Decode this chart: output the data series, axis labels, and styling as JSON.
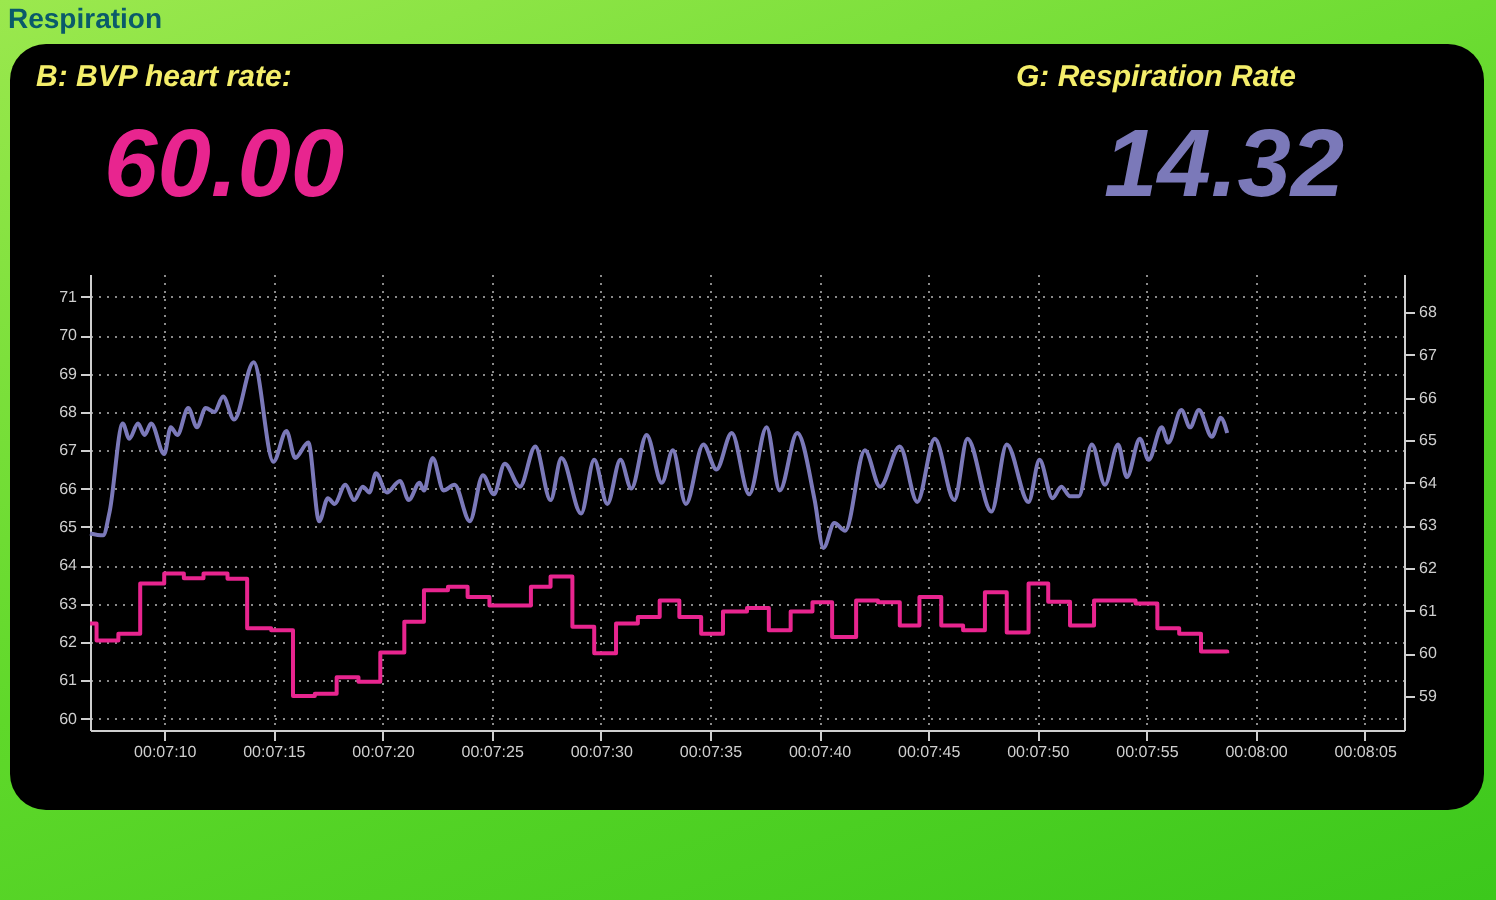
{
  "chart_data": {
    "type": "line",
    "title": "Respiration",
    "annotations": [
      "B: BVP heart rate:",
      "60.00",
      "G: Respiration Rate",
      "14.32"
    ],
    "xlim": [
      426.6,
      486.8
    ],
    "xticks": [
      {
        "value": 430,
        "label": "00:07:10"
      },
      {
        "value": 435,
        "label": "00:07:15"
      },
      {
        "value": 440,
        "label": "00:07:20"
      },
      {
        "value": 445,
        "label": "00:07:25"
      },
      {
        "value": 450,
        "label": "00:07:30"
      },
      {
        "value": 455,
        "label": "00:07:35"
      },
      {
        "value": 460,
        "label": "00:07:40"
      },
      {
        "value": 465,
        "label": "00:07:45"
      },
      {
        "value": 470,
        "label": "00:07:50"
      },
      {
        "value": 475,
        "label": "00:07:55"
      },
      {
        "value": 480,
        "label": "00:08:00"
      },
      {
        "value": 485,
        "label": "00:08:05"
      }
    ],
    "ylim": [
      59.7,
      71.6
    ],
    "yticks": [
      60,
      61,
      62,
      63,
      64,
      65,
      66,
      67,
      68,
      69,
      70,
      71
    ],
    "y2lim": [
      58.2,
      68.9
    ],
    "y2ticks": [
      59,
      60,
      61,
      62,
      63,
      64,
      65,
      66,
      67,
      68
    ],
    "grid": true,
    "series": [
      {
        "color": "#7b79b9",
        "x": [
          426.6,
          427.2,
          427.5,
          428.1,
          428.4,
          428.8,
          429.1,
          429.4,
          430.0,
          430.3,
          430.6,
          431.1,
          431.5,
          431.9,
          432.3,
          432.7,
          433.2,
          434.1,
          435.0,
          435.6,
          436.0,
          436.6,
          437.1,
          437.5,
          437.8,
          438.3,
          438.7,
          439.1,
          439.4,
          439.7,
          440.2,
          440.8,
          441.2,
          441.7,
          441.9,
          442.3,
          442.8,
          443.3,
          444.0,
          444.6,
          445.1,
          445.6,
          446.3,
          447.0,
          447.7,
          448.2,
          449.1,
          449.7,
          450.3,
          450.9,
          451.4,
          452.1,
          452.8,
          453.3,
          453.9,
          454.7,
          455.3,
          456.0,
          456.8,
          457.6,
          458.2,
          459.0,
          459.8,
          460.2,
          460.7,
          461.2,
          462.1,
          462.8,
          463.7,
          464.5,
          465.3,
          466.2,
          466.8,
          467.9,
          468.6,
          469.6,
          470.1,
          470.7,
          471.1,
          471.5,
          471.9,
          472.5,
          473.1,
          473.7,
          474.1,
          474.7,
          475.1,
          475.7,
          476.0,
          476.6,
          477.0,
          477.4,
          478.0,
          478.4,
          478.7
        ],
        "values": [
          64.83,
          64.78,
          65.4,
          67.7,
          67.3,
          67.7,
          67.4,
          67.7,
          66.9,
          67.6,
          67.4,
          68.1,
          67.6,
          68.1,
          68.0,
          68.4,
          67.8,
          69.3,
          66.7,
          67.5,
          66.8,
          67.2,
          65.15,
          65.75,
          65.6,
          66.1,
          65.7,
          66.05,
          65.9,
          66.4,
          65.9,
          66.2,
          65.7,
          66.15,
          65.95,
          66.8,
          65.95,
          66.1,
          65.15,
          66.35,
          65.85,
          66.65,
          66.05,
          67.1,
          65.7,
          66.8,
          65.35,
          66.75,
          65.6,
          66.75,
          66.0,
          67.4,
          66.15,
          67.0,
          65.6,
          67.15,
          66.5,
          67.45,
          65.85,
          67.6,
          65.95,
          67.45,
          65.7,
          64.45,
          65.1,
          64.9,
          67.0,
          66.05,
          67.1,
          65.65,
          67.3,
          65.7,
          67.3,
          65.4,
          67.15,
          65.65,
          66.75,
          65.75,
          66.05,
          65.8,
          65.8,
          67.15,
          66.1,
          67.15,
          66.3,
          67.3,
          66.75,
          67.6,
          67.2,
          68.05,
          67.6,
          68.05,
          67.35,
          67.85,
          67.45
        ]
      },
      {
        "type": "step",
        "axis": "y2",
        "color": "#e8258f",
        "x": [
          426.6,
          426.9,
          427.9,
          428.9,
          430.0,
          430.9,
          431.8,
          432.9,
          433.8,
          434.9,
          435.9,
          436.9,
          437.9,
          438.9,
          439.9,
          441.0,
          441.9,
          443.0,
          443.9,
          444.9,
          446.8,
          447.7,
          448.7,
          449.7,
          450.7,
          451.7,
          452.7,
          453.6,
          454.6,
          455.6,
          456.7,
          457.7,
          458.7,
          459.7,
          460.6,
          461.7,
          462.7,
          463.7,
          464.6,
          465.6,
          466.6,
          467.6,
          468.6,
          469.6,
          470.5,
          471.5,
          472.6,
          474.5,
          475.5,
          476.5,
          477.5,
          478.7
        ],
        "values": [
          60.7,
          60.3,
          60.46,
          61.64,
          61.87,
          61.76,
          61.87,
          61.75,
          60.59,
          60.54,
          59.0,
          59.05,
          59.44,
          59.33,
          60.02,
          60.74,
          61.48,
          61.56,
          61.32,
          61.12,
          61.56,
          61.8,
          60.62,
          60.0,
          60.7,
          60.85,
          61.24,
          60.85,
          60.46,
          60.98,
          61.06,
          60.54,
          60.98,
          61.2,
          60.38,
          61.24,
          61.2,
          60.65,
          61.32,
          60.65,
          60.54,
          61.43,
          60.49,
          61.64,
          61.21,
          60.65,
          61.24,
          61.17,
          60.59,
          60.46,
          60.04,
          60.0
        ]
      }
    ]
  }
}
